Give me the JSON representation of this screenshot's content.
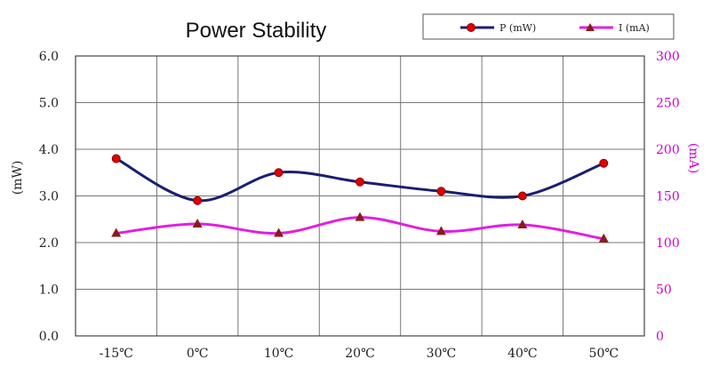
{
  "chart_data": {
    "type": "line",
    "title": "Power Stability",
    "categories": [
      "-15℃",
      "0℃",
      "10℃",
      "20℃",
      "30℃",
      "40℃",
      "50℃"
    ],
    "ylabel_left": "(mW)",
    "ylabel_right": "(mA)",
    "ylim_left": [
      0,
      6
    ],
    "ylim_right": [
      0,
      300
    ],
    "yticks_left": [
      "0.0",
      "1.0",
      "2.0",
      "3.0",
      "4.0",
      "5.0",
      "6.0"
    ],
    "yticks_right": [
      "0",
      "50",
      "100",
      "150",
      "200",
      "250",
      "300"
    ],
    "grid": true,
    "legend_position": "top-right",
    "series": [
      {
        "name": "P (mW)",
        "axis": "left",
        "color": "#1a1f6e",
        "marker": "circle",
        "marker_color": "#e00000",
        "values": [
          3.8,
          2.9,
          3.5,
          3.3,
          3.1,
          3.0,
          3.7
        ]
      },
      {
        "name": "I (mA)",
        "axis": "right",
        "color": "#e020e0",
        "marker": "triangle",
        "marker_color": "#8b1a1a",
        "values": [
          110,
          120,
          110,
          127,
          112,
          119,
          104
        ]
      }
    ]
  }
}
